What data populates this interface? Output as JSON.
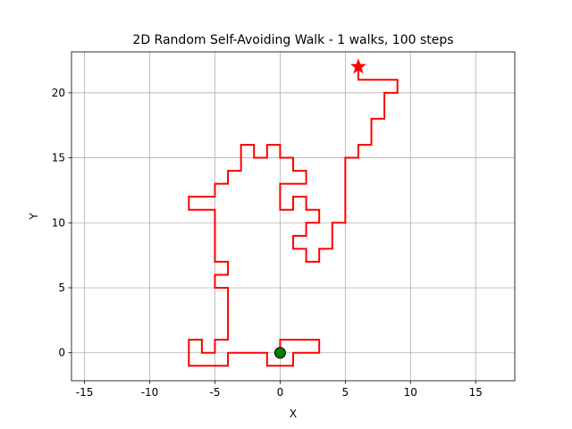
{
  "chart_data": {
    "type": "line",
    "title": "2D Random Self-Avoiding Walk - 1 walks, 100 steps",
    "xlabel": "X",
    "ylabel": "Y",
    "x": [
      0,
      0,
      1,
      2,
      3,
      3,
      2,
      1,
      1,
      0,
      -1,
      -1,
      -2,
      -3,
      -4,
      -4,
      -5,
      -6,
      -7,
      -7,
      -7,
      -6,
      -6,
      -5,
      -5,
      -4,
      -4,
      -4,
      -4,
      -4,
      -5,
      -5,
      -4,
      -4,
      -5,
      -5,
      -5,
      -5,
      -5,
      -6,
      -7,
      -7,
      -6,
      -5,
      -5,
      -4,
      -4,
      -3,
      -3,
      -3,
      -2,
      -2,
      -1,
      -1,
      0,
      0,
      1,
      1,
      2,
      2,
      1,
      0,
      0,
      0,
      1,
      1,
      2,
      2,
      3,
      3,
      2,
      2,
      1,
      1,
      2,
      2,
      3,
      3,
      4,
      4,
      4,
      5,
      5,
      5,
      5,
      5,
      5,
      6,
      6,
      7,
      7,
      7,
      8,
      8,
      8,
      9,
      9,
      8,
      7,
      6,
      6
    ],
    "y": [
      0,
      1,
      1,
      1,
      1,
      0,
      0,
      0,
      -1,
      -1,
      -1,
      0,
      0,
      0,
      0,
      -1,
      -1,
      -1,
      -1,
      0,
      1,
      1,
      0,
      0,
      1,
      1,
      2,
      3,
      4,
      5,
      5,
      6,
      6,
      7,
      7,
      8,
      9,
      10,
      11,
      11,
      11,
      12,
      12,
      12,
      13,
      13,
      14,
      14,
      15,
      16,
      16,
      15,
      15,
      16,
      16,
      15,
      15,
      14,
      14,
      13,
      13,
      13,
      12,
      11,
      11,
      12,
      12,
      11,
      11,
      10,
      10,
      9,
      9,
      8,
      8,
      7,
      7,
      8,
      8,
      9,
      10,
      10,
      11,
      12,
      13,
      14,
      15,
      15,
      16,
      16,
      17,
      18,
      18,
      19,
      20,
      20,
      21,
      21,
      21,
      21,
      22
    ],
    "color": "#ff0000",
    "start_color": "#008000",
    "end_color": "#ff0000",
    "xlim": [
      -16,
      18
    ],
    "ylim": [
      -2.15,
      23.15
    ],
    "xticks": [
      -15,
      -10,
      -5,
      0,
      5,
      10,
      15
    ],
    "yticks": [
      0,
      5,
      10,
      15,
      20
    ],
    "grid": true
  }
}
